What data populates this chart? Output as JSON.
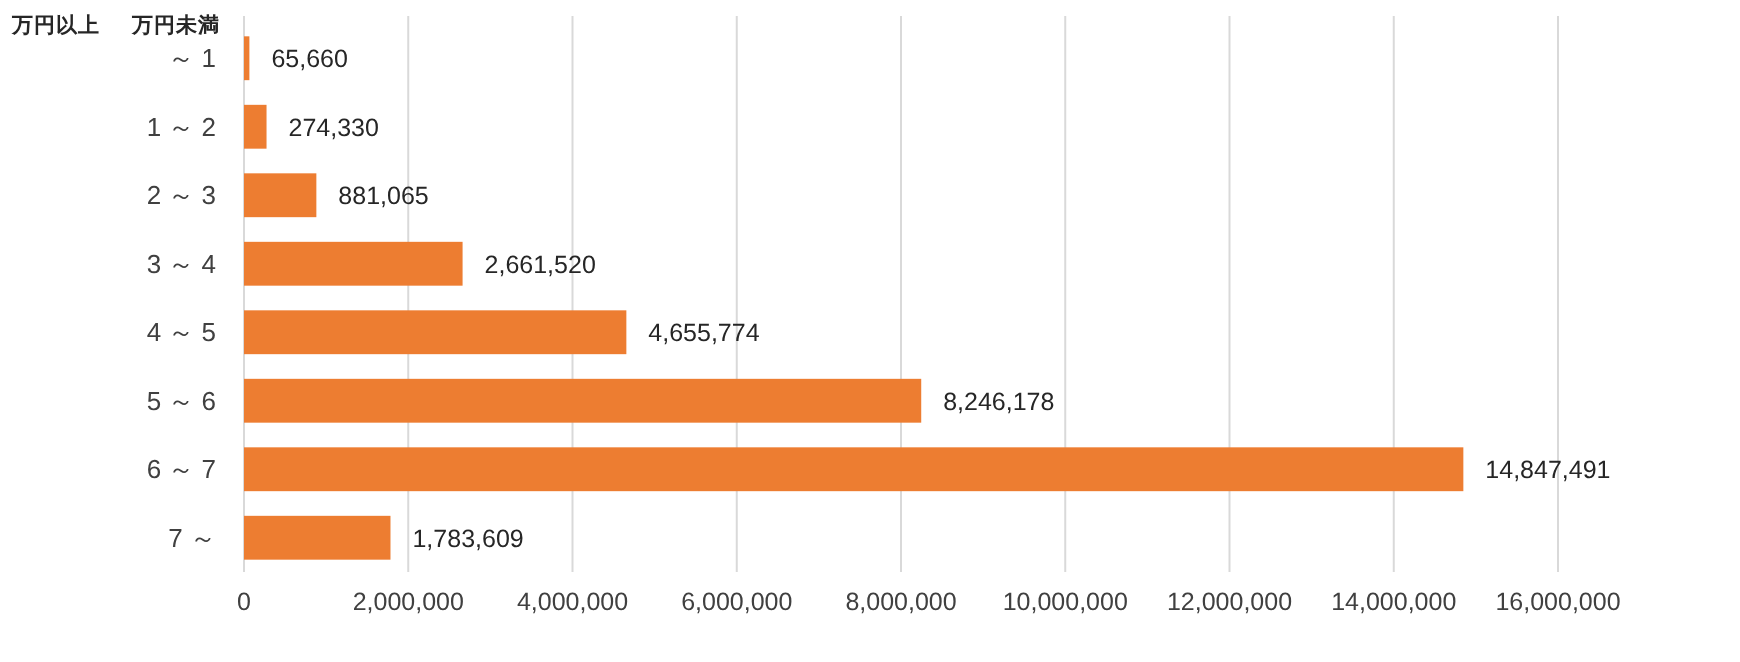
{
  "chart_data": {
    "type": "bar",
    "orientation": "horizontal",
    "categories": [
      "～ 1",
      "1 ～ 2",
      "2 ～ 3",
      "3 ～ 4",
      "4 ～ 5",
      "5 ～ 6",
      "6 ～ 7",
      "7 ～"
    ],
    "values": [
      65660,
      274330,
      881065,
      2661520,
      4655774,
      8246178,
      14847491,
      1783609
    ],
    "value_labels": [
      "65,660",
      "274,330",
      "881,065",
      "2,661,520",
      "4,655,774",
      "8,246,178",
      "14,847,491",
      "1,783,609"
    ],
    "color": "#ed7d31",
    "xlim": [
      0,
      16000000
    ],
    "xticks": [
      0,
      {
        "value": 2000000,
        "label": "2,000,000"
      },
      {
        "value": 4000000,
        "label": "4,000,000"
      },
      {
        "value": 6000000,
        "label": "6,000,000"
      },
      {
        "value": 8000000,
        "label": "8,000,000"
      },
      {
        "value": 10000000,
        "label": "10,000,000"
      },
      {
        "value": 12000000,
        "label": "12,000,000"
      },
      {
        "value": 14000000,
        "label": "14,000,000"
      },
      {
        "value": 16000000,
        "label": "16,000,000"
      }
    ],
    "grid": "x",
    "annotations": [
      "万円以上",
      "万円未満"
    ]
  }
}
